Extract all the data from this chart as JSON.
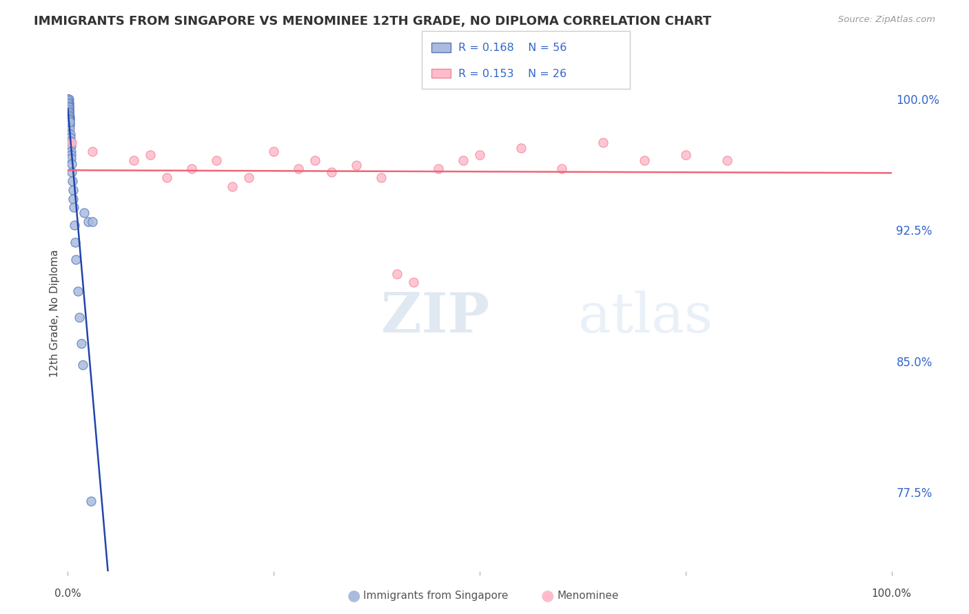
{
  "title": "IMMIGRANTS FROM SINGAPORE VS MENOMINEE 12TH GRADE, NO DIPLOMA CORRELATION CHART",
  "source_text": "Source: ZipAtlas.com",
  "ylabel": "12th Grade, No Diploma",
  "legend_r1": "R = 0.168",
  "legend_n1": "N = 56",
  "legend_r2": "R = 0.153",
  "legend_n2": "N = 26",
  "legend_label1": "Immigrants from Singapore",
  "legend_label2": "Menominee",
  "blue_color": "#AABBDD",
  "blue_edge_color": "#5577BB",
  "pink_color": "#FFBBCC",
  "pink_edge_color": "#EE8899",
  "blue_line_color": "#2244AA",
  "pink_line_color": "#EE6677",
  "blue_scatter_x": [
    0.05,
    0.07,
    0.08,
    0.09,
    0.1,
    0.1,
    0.11,
    0.12,
    0.13,
    0.14,
    0.15,
    0.16,
    0.17,
    0.18,
    0.19,
    0.2,
    0.22,
    0.23,
    0.25,
    0.28,
    0.3,
    0.32,
    0.35,
    0.38,
    0.4,
    0.42,
    0.45,
    0.5,
    0.55,
    0.6,
    0.65,
    0.7,
    0.8,
    0.9,
    1.0,
    1.2,
    1.4,
    1.6,
    1.8,
    2.0,
    2.5,
    3.0,
    0.06,
    0.07,
    0.08,
    0.09,
    0.1,
    0.11,
    0.12,
    0.13,
    0.14,
    0.15,
    0.16,
    0.17,
    0.18,
    2.8
  ],
  "blue_scatter_y": [
    100.0,
    100.0,
    100.0,
    100.0,
    100.0,
    99.8,
    99.7,
    99.6,
    99.5,
    99.4,
    99.3,
    99.2,
    99.1,
    99.0,
    98.9,
    98.8,
    98.6,
    98.5,
    98.3,
    98.0,
    97.8,
    97.6,
    97.3,
    97.0,
    96.8,
    96.6,
    96.3,
    95.8,
    95.3,
    94.8,
    94.3,
    93.8,
    92.8,
    91.8,
    90.8,
    89.0,
    87.5,
    86.0,
    84.8,
    93.5,
    93.0,
    93.0,
    99.9,
    99.8,
    99.7,
    99.6,
    99.5,
    99.4,
    99.3,
    99.2,
    99.1,
    99.0,
    98.9,
    98.8,
    98.7,
    77.0
  ],
  "pink_scatter_x": [
    0.5,
    3.0,
    8.0,
    10.0,
    12.0,
    15.0,
    18.0,
    20.0,
    22.0,
    25.0,
    28.0,
    30.0,
    32.0,
    35.0,
    38.0,
    40.0,
    42.0,
    45.0,
    48.0,
    50.0,
    55.0,
    60.0,
    65.0,
    70.0,
    75.0,
    80.0
  ],
  "pink_scatter_y": [
    97.5,
    97.0,
    96.5,
    96.8,
    95.5,
    96.0,
    96.5,
    95.0,
    95.5,
    97.0,
    96.0,
    96.5,
    95.8,
    96.2,
    95.5,
    90.0,
    89.5,
    96.0,
    96.5,
    96.8,
    97.2,
    96.0,
    97.5,
    96.5,
    96.8,
    96.5
  ],
  "xmin": 0.0,
  "xmax": 100.0,
  "ymin": 73.0,
  "ymax": 102.5,
  "right_yticks": [
    77.5,
    85.0,
    92.5,
    100.0
  ],
  "right_ytick_labels": [
    "77.5%",
    "85.0%",
    "92.5%",
    "100.0%"
  ],
  "watermark_zip": "ZIP",
  "watermark_atlas": "atlas",
  "background_color": "#FFFFFF",
  "grid_color": "#CCCCCC"
}
